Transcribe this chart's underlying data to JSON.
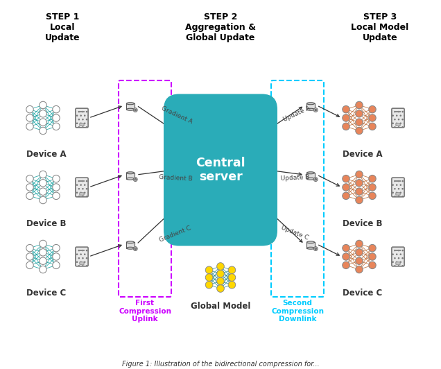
{
  "step1_title": "STEP 1\nLocal\nUpdate",
  "step2_title": "STEP 2\nAggregation &\nGlobal Update",
  "step3_title": "STEP 3\nLocal Model\nUpdate",
  "central_server_text": "Central\nserver",
  "global_model_text": "Global Model",
  "first_compression_text": "First\nCompression\nUplink",
  "second_compression_text": "Second\nCompression\nDownlink",
  "device_labels": [
    "Device A",
    "Device B",
    "Device C"
  ],
  "gradient_labels": [
    "Gradient A",
    "Gradient B",
    "Gradient C"
  ],
  "update_labels": [
    "Update A",
    "Update B",
    "Update C"
  ],
  "teal_color": "#2AACB8",
  "magenta_color": "#CC00FF",
  "cyan_color": "#00CCFF",
  "node_color_left": "#FFFFFF",
  "node_color_right": "#E8855A",
  "node_color_global": "#FFD700",
  "edge_color_left": "#009999",
  "edge_color_right": "#B8622A",
  "edge_color_global": "#007777",
  "bg_color": "#FFFFFF",
  "caption": "Figure 1: Illustration of the bidirectional compression for..."
}
